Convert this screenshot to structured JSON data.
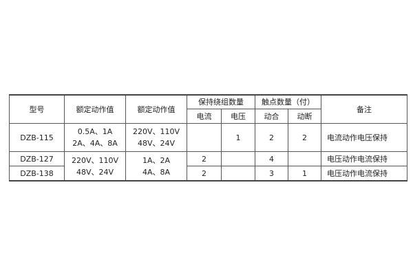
{
  "headers": {
    "model": "型号",
    "rated_value_1": "额定动作值",
    "rated_value_2": "额定动作值",
    "holding_winding": "保持绕组数量",
    "current": "电流",
    "voltage": "电压",
    "contacts": "触点数量（付）",
    "make": "动合",
    "break": "动断",
    "note": "备注"
  },
  "rows": [
    {
      "model": "DZB-115",
      "rated1_line1": "0.5A、1A",
      "rated1_line2": "2A、4A、8A",
      "rated2_line1": "220V、110V",
      "rated2_line2": "48V、24V",
      "current": "",
      "voltage": "1",
      "make": "2",
      "break": "2",
      "note": "电流动作电压保持"
    },
    {
      "model": "DZB-127",
      "current": "2",
      "voltage": "",
      "make": "4",
      "break": "",
      "note": "电压动作电流保持"
    },
    {
      "model": "DZB-138",
      "current": "2",
      "voltage": "",
      "make": "3",
      "break": "1",
      "note": "电压动作电流保持"
    }
  ],
  "shared_rated": {
    "rated1_line1": "220V、110V",
    "rated1_line2": "48V、24V",
    "rated2_line1": "1A、2A",
    "rated2_line2": "4A、8A"
  }
}
